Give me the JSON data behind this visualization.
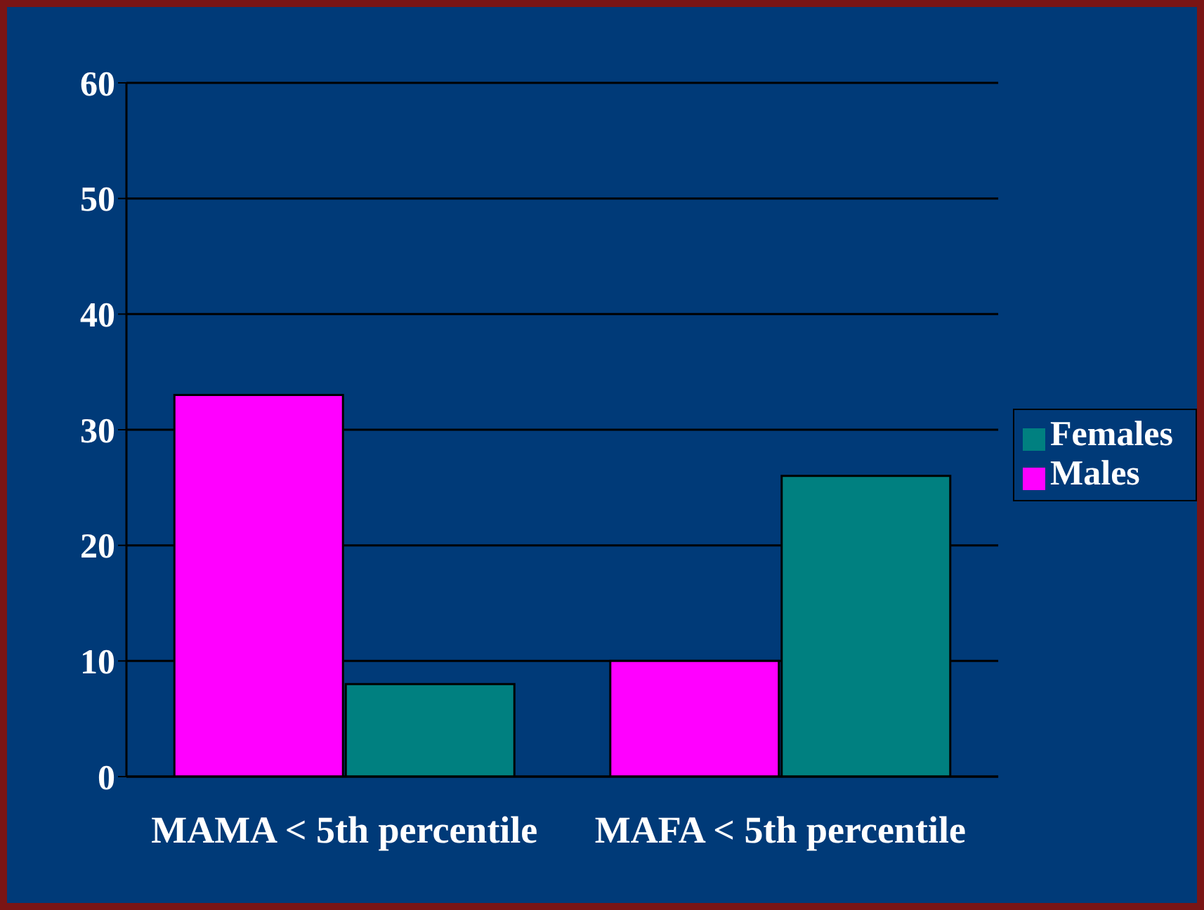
{
  "chart_data": {
    "type": "bar",
    "categories": [
      "MAMA < 5th percentile",
      "MAFA < 5th percentile"
    ],
    "series": [
      {
        "name": "Males",
        "color": "#ff00ff",
        "values": [
          33,
          10
        ]
      },
      {
        "name": "Females",
        "color": "#008080",
        "values": [
          8,
          26
        ]
      }
    ],
    "ylim": [
      0,
      60
    ],
    "yticks": [
      0,
      10,
      20,
      30,
      40,
      50,
      60
    ],
    "grid": "y",
    "legend": "right"
  }
}
